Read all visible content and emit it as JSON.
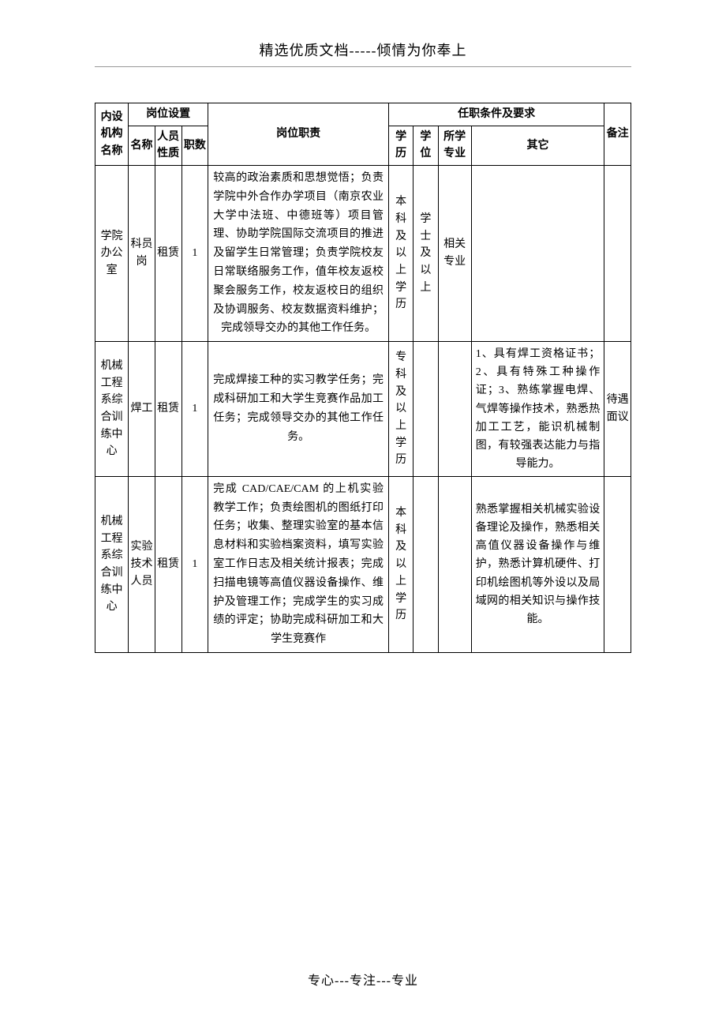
{
  "header": "精选优质文档-----倾情为你奉上",
  "footer": "专心---专注---专业",
  "table": {
    "headers": {
      "org": "内设机构名称",
      "position_group": "岗位设置",
      "name": "名称",
      "nature": "人员性质",
      "count": "职数",
      "duty": "岗位职责",
      "req_group": "任职条件及要求",
      "education": "学历",
      "degree": "学位",
      "major": "所学专业",
      "other": "其它",
      "note": "备注"
    },
    "rows": [
      {
        "org": "学院办公室",
        "name": "科员岗",
        "nature": "租赁",
        "count": "1",
        "duty": "较高的政治素质和思想觉悟；负责学院中外合作办学项目（南京农业大学中法班、中德班等）项目管理、协助学院国际交流项目的推进及留学生日常管理；负责学院校友日常联络服务工作，值年校友返校聚会服务工作，校友返校日的组织及协调服务、校友数据资料维护；完成领导交办的其他工作任务。",
        "education": "本科及以上学历",
        "degree": "学士及以上",
        "major": "相关专业",
        "other": "",
        "note": ""
      },
      {
        "org": "机械工程系综合训练中心",
        "name": "焊工",
        "nature": "租赁",
        "count": "1",
        "duty": "完成焊接工种的实习教学任务；完成科研加工和大学生竞赛作品加工任务；完成领导交办的其他工作任务。",
        "education": "专科及以上学历",
        "degree": "",
        "major": "",
        "other": "1、具有焊工资格证书；2、具有特殊工种操作证；3、熟练掌握电焊、气焊等操作技术，熟悉热加工工艺，能识机械制图，有较强表达能力与指导能力。",
        "note": "待遇面议"
      },
      {
        "org": "机械工程系综合训练中心",
        "name": "实验技术人员",
        "nature": "租赁",
        "count": "1",
        "duty": "完成 CAD/CAE/CAM 的上机实验教学工作；负责绘图机的图纸打印任务；收集、整理实验室的基本信息材料和实验档案资料，填写实验室工作日志及相关统计报表；完成扫描电镜等高值仪器设备操作、维护及管理工作；完成学生的实习成绩的评定；协助完成科研加工和大学生竞赛作",
        "education": "本科及以上学历",
        "degree": "",
        "major": "",
        "other": "熟悉掌握相关机械实验设备理论及操作，熟悉相关高值仪器设备操作与维护，熟悉计算机硬件、打印机绘图机等外设以及局域网的相关知识与操作技能。",
        "note": ""
      }
    ]
  }
}
